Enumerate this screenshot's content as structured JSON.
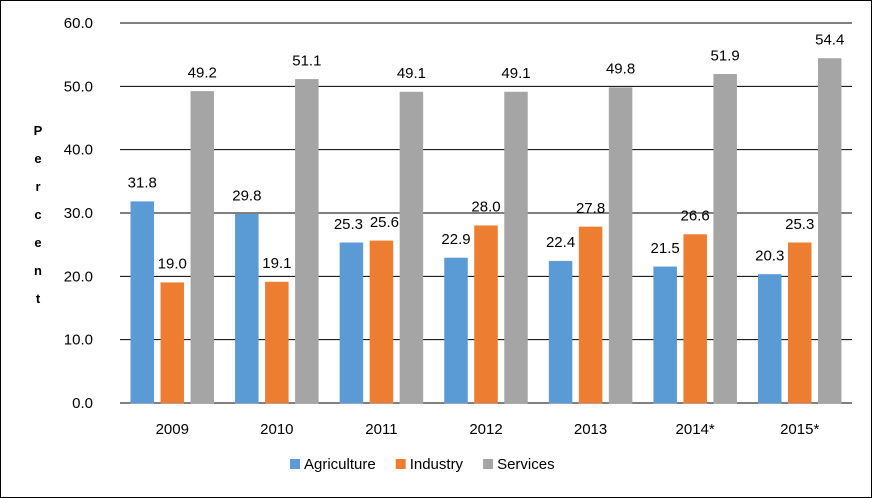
{
  "chart_data": {
    "type": "bar",
    "categories": [
      "2009",
      "2010",
      "2011",
      "2012",
      "2013",
      "2014*",
      "2015*"
    ],
    "series": [
      {
        "name": "Agriculture",
        "color": "#5B9BD5",
        "values": [
          31.8,
          29.8,
          25.3,
          22.9,
          22.4,
          21.5,
          20.3
        ]
      },
      {
        "name": "Industry",
        "color": "#ED7D31",
        "values": [
          19.0,
          19.1,
          25.6,
          28.0,
          27.8,
          26.6,
          25.3
        ]
      },
      {
        "name": "Services",
        "color": "#A5A5A5",
        "values": [
          49.2,
          51.1,
          49.1,
          49.1,
          49.8,
          51.9,
          54.4
        ]
      }
    ],
    "ylabel": "Percent",
    "ylim": [
      0,
      60
    ],
    "yticks": [
      "0.0",
      "10.0",
      "20.0",
      "30.0",
      "40.0",
      "50.0",
      "60.0"
    ],
    "grid": true,
    "legend_position": "bottom"
  }
}
